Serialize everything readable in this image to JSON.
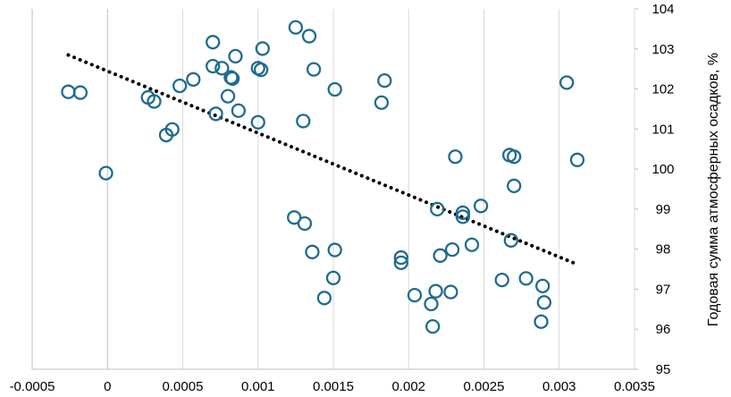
{
  "chart_data": {
    "type": "scatter",
    "title": "",
    "xlabel": "",
    "ylabel": "Годовая сумма атмосферных осадков, %",
    "xlim": [
      -0.0005,
      0.0035
    ],
    "ylim": [
      95,
      104
    ],
    "x_ticks": [
      "-0.0005",
      "0",
      "0.0005",
      "0.001",
      "0.0015",
      "0.002",
      "0.0025",
      "0.003",
      "0.0035"
    ],
    "y_ticks": [
      "95",
      "96",
      "97",
      "98",
      "99",
      "100",
      "101",
      "102",
      "103",
      "104"
    ],
    "grid": "vertical",
    "legend": "none",
    "colors": {
      "marker": "#1f6b8f",
      "trendline": "#000000",
      "grid": "#d9d9d9",
      "axis": "#bfbfbf"
    },
    "series": [
      {
        "points": [
          [
            -0.00026,
            101.93
          ],
          [
            -0.00018,
            101.91
          ],
          [
            -1e-05,
            99.9
          ],
          [
            0.00027,
            101.79
          ],
          [
            0.00031,
            101.69
          ],
          [
            0.00039,
            100.85
          ],
          [
            0.00043,
            100.99
          ],
          [
            0.00048,
            102.08
          ],
          [
            0.00057,
            102.24
          ],
          [
            0.0007,
            103.17
          ],
          [
            0.0007,
            102.57
          ],
          [
            0.00072,
            101.38
          ],
          [
            0.00076,
            102.52
          ],
          [
            0.0008,
            101.82
          ],
          [
            0.00082,
            102.29
          ],
          [
            0.00083,
            102.26
          ],
          [
            0.00085,
            102.82
          ],
          [
            0.00087,
            101.46
          ],
          [
            0.001,
            102.52
          ],
          [
            0.001,
            101.17
          ],
          [
            0.00102,
            102.48
          ],
          [
            0.00103,
            103.01
          ],
          [
            0.00124,
            98.79
          ],
          [
            0.00125,
            103.54
          ],
          [
            0.0013,
            101.2
          ],
          [
            0.00131,
            98.64
          ],
          [
            0.00134,
            103.32
          ],
          [
            0.00136,
            97.93
          ],
          [
            0.00137,
            102.49
          ],
          [
            0.00144,
            96.78
          ],
          [
            0.0015,
            97.28
          ],
          [
            0.00151,
            97.98
          ],
          [
            0.00151,
            101.99
          ],
          [
            0.00182,
            101.66
          ],
          [
            0.00184,
            102.21
          ],
          [
            0.00195,
            97.79
          ],
          [
            0.00195,
            97.66
          ],
          [
            0.00204,
            96.85
          ],
          [
            0.00215,
            96.63
          ],
          [
            0.00216,
            96.07
          ],
          [
            0.00218,
            96.95
          ],
          [
            0.00219,
            99.0
          ],
          [
            0.00221,
            97.84
          ],
          [
            0.00228,
            96.93
          ],
          [
            0.00229,
            97.99
          ],
          [
            0.00231,
            100.31
          ],
          [
            0.00236,
            98.91
          ],
          [
            0.00236,
            98.81
          ],
          [
            0.00242,
            98.11
          ],
          [
            0.00248,
            99.08
          ],
          [
            0.00262,
            97.23
          ],
          [
            0.00267,
            100.35
          ],
          [
            0.00268,
            98.22
          ],
          [
            0.0027,
            100.31
          ],
          [
            0.0027,
            99.58
          ],
          [
            0.00278,
            97.27
          ],
          [
            0.00288,
            96.19
          ],
          [
            0.00289,
            97.08
          ],
          [
            0.0029,
            96.67
          ],
          [
            0.00305,
            102.16
          ],
          [
            0.00312,
            100.23
          ]
        ]
      }
    ],
    "trendline": {
      "style": "dotted",
      "x": [
        -0.00026,
        0.00312
      ],
      "y": [
        102.85,
        97.62
      ]
    }
  }
}
